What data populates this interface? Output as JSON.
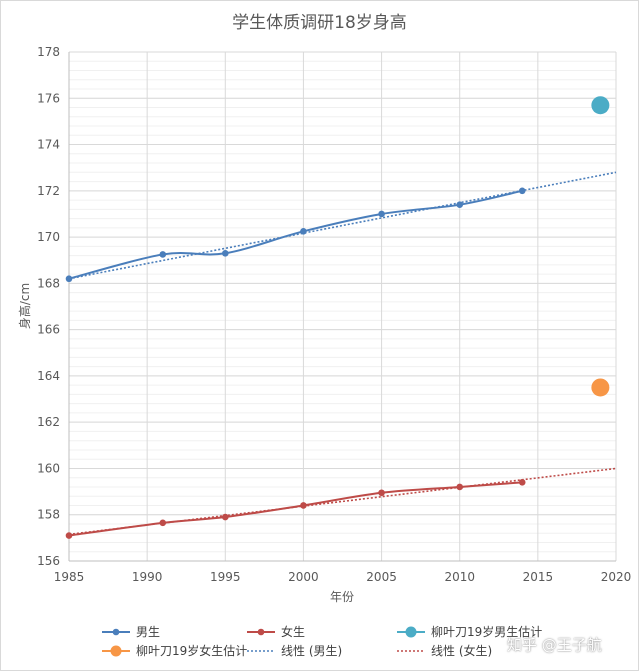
{
  "chart_data": {
    "type": "line",
    "title": "学生体质调研18岁身高",
    "xlabel": "年份",
    "ylabel": "身高/cm",
    "xlim": [
      1985,
      2020
    ],
    "ylim": [
      156,
      178
    ],
    "x_ticks": [
      1985,
      1990,
      1995,
      2000,
      2005,
      2010,
      2015,
      2020
    ],
    "y_ticks": [
      156,
      158,
      160,
      162,
      164,
      166,
      168,
      170,
      172,
      174,
      176,
      178
    ],
    "grid": true,
    "legend_position": "bottom",
    "series": [
      {
        "name": "男生",
        "kind": "line",
        "color": "#4a7ebb",
        "x": [
          1985,
          1991,
          1995,
          2000,
          2005,
          2010,
          2014
        ],
        "y": [
          168.2,
          169.25,
          169.3,
          170.25,
          171.0,
          171.4,
          172.0
        ]
      },
      {
        "name": "女生",
        "kind": "line",
        "color": "#be4b48",
        "x": [
          1985,
          1991,
          1995,
          2000,
          2005,
          2010,
          2014
        ],
        "y": [
          157.1,
          157.65,
          157.9,
          158.4,
          158.95,
          159.2,
          159.4
        ]
      },
      {
        "name": "柳叶刀19岁男生估计",
        "kind": "point",
        "color": "#4bacc6",
        "x": [
          2019
        ],
        "y": [
          175.7
        ]
      },
      {
        "name": "柳叶刀19岁女生估计",
        "kind": "point",
        "color": "#f79646",
        "x": [
          2019
        ],
        "y": [
          163.5
        ]
      },
      {
        "name": "线性 (男生)",
        "kind": "trend",
        "color": "#4a7ebb",
        "x": [
          1985,
          2020
        ],
        "y": [
          168.2,
          172.8
        ]
      },
      {
        "name": "线性 (女生)",
        "kind": "trend",
        "color": "#be4b48",
        "x": [
          1985,
          2020
        ],
        "y": [
          157.15,
          160.0
        ]
      }
    ]
  },
  "watermark": "知乎 @王子航"
}
